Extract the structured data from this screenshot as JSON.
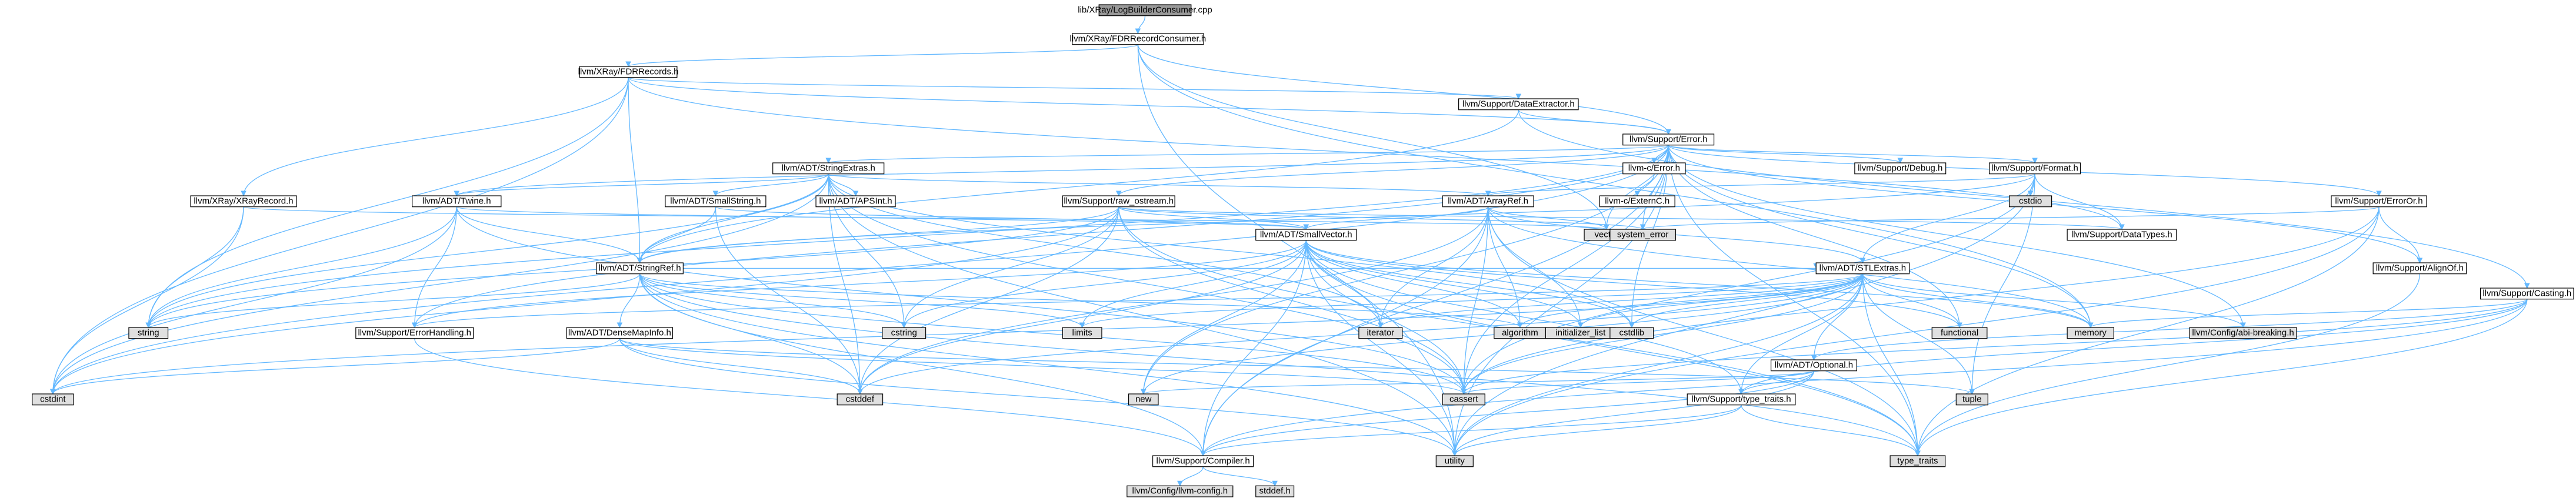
{
  "colors": {
    "edge": "#63b8ff",
    "node_fill": "#ffffff",
    "node_fill_focus": "#999999",
    "node_fill_system": "#e0e0e0",
    "node_stroke": "#000000",
    "node_stroke_missing": "#ff0000",
    "text": "#000000",
    "text_missing": "#ff0000"
  },
  "nodes": [
    {
      "id": "n_root",
      "label": "lib/XRay/LogBuilderConsumer.cpp",
      "kind": "focus"
    },
    {
      "id": "n_fdrrc",
      "label": "llvm/XRay/FDRRecordConsumer.h",
      "kind": "normal"
    },
    {
      "id": "n_fdrrecords",
      "label": "llvm/XRay/FDRRecords.h",
      "kind": "normal"
    },
    {
      "id": "n_dataext",
      "label": "llvm/Support/DataExtractor.h",
      "kind": "normal"
    },
    {
      "id": "n_error",
      "label": "llvm/Support/Error.h",
      "kind": "normal"
    },
    {
      "id": "n_strext",
      "label": "llvm/ADT/StringExtras.h",
      "kind": "normal"
    },
    {
      "id": "n_cerror",
      "label": "llvm-c/Error.h",
      "kind": "normal"
    },
    {
      "id": "n_debug",
      "label": "llvm/Support/Debug.h",
      "kind": "normal"
    },
    {
      "id": "n_format",
      "label": "llvm/Support/Format.h",
      "kind": "normal"
    },
    {
      "id": "n_xrayrec",
      "label": "llvm/XRay/XRayRecord.h",
      "kind": "normal"
    },
    {
      "id": "n_twine",
      "label": "llvm/ADT/Twine.h",
      "kind": "normal"
    },
    {
      "id": "n_smallstr",
      "label": "llvm/ADT/SmallString.h",
      "kind": "normal"
    },
    {
      "id": "n_apsint",
      "label": "llvm/ADT/APSInt.h",
      "kind": "missing"
    },
    {
      "id": "n_arrayref",
      "label": "llvm/ADT/ArrayRef.h",
      "kind": "missing"
    },
    {
      "id": "n_rawostream",
      "label": "llvm/Support/raw_ostream.h",
      "kind": "normal"
    },
    {
      "id": "n_externc",
      "label": "llvm-c/ExternC.h",
      "kind": "normal"
    },
    {
      "id": "n_cstdio",
      "label": "cstdio",
      "kind": "system"
    },
    {
      "id": "n_erroror",
      "label": "llvm/Support/ErrorOr.h",
      "kind": "normal"
    },
    {
      "id": "n_casting",
      "label": "llvm/Support/Casting.h",
      "kind": "normal"
    },
    {
      "id": "n_stringref",
      "label": "llvm/ADT/StringRef.h",
      "kind": "missing"
    },
    {
      "id": "n_smallvector",
      "label": "llvm/ADT/SmallVector.h",
      "kind": "normal"
    },
    {
      "id": "n_vector",
      "label": "vector",
      "kind": "system"
    },
    {
      "id": "n_syserror",
      "label": "system_error",
      "kind": "system"
    },
    {
      "id": "n_datatypes",
      "label": "llvm/Support/DataTypes.h",
      "kind": "missing"
    },
    {
      "id": "n_stlextras",
      "label": "llvm/ADT/STLExtras.h",
      "kind": "missing"
    },
    {
      "id": "n_alignof",
      "label": "llvm/Support/AlignOf.h",
      "kind": "normal"
    },
    {
      "id": "n_string",
      "label": "string",
      "kind": "system"
    },
    {
      "id": "n_errhandling",
      "label": "llvm/Support/ErrorHandling.h",
      "kind": "normal"
    },
    {
      "id": "n_densemapinfo",
      "label": "llvm/ADT/DenseMapInfo.h",
      "kind": "normal"
    },
    {
      "id": "n_cstring",
      "label": "cstring",
      "kind": "system"
    },
    {
      "id": "n_limits",
      "label": "limits",
      "kind": "system"
    },
    {
      "id": "n_iterator",
      "label": "iterator",
      "kind": "system"
    },
    {
      "id": "n_algorithm",
      "label": "algorithm",
      "kind": "system"
    },
    {
      "id": "n_initlist",
      "label": "initializer_list",
      "kind": "system"
    },
    {
      "id": "n_cstdlib",
      "label": "cstdlib",
      "kind": "system"
    },
    {
      "id": "n_functional",
      "label": "functional",
      "kind": "system"
    },
    {
      "id": "n_memory",
      "label": "memory",
      "kind": "system"
    },
    {
      "id": "n_abibreak",
      "label": "llvm/Config/abi-breaking.h",
      "kind": "system"
    },
    {
      "id": "n_optional",
      "label": "llvm/ADT/Optional.h",
      "kind": "missing"
    },
    {
      "id": "n_cstdint",
      "label": "cstdint",
      "kind": "system"
    },
    {
      "id": "n_cstddef",
      "label": "cstddef",
      "kind": "system"
    },
    {
      "id": "n_new",
      "label": "new",
      "kind": "system"
    },
    {
      "id": "n_cassert",
      "label": "cassert",
      "kind": "system"
    },
    {
      "id": "n_typetraits",
      "label": "llvm/Support/type_traits.h",
      "kind": "normal"
    },
    {
      "id": "n_tuple",
      "label": "tuple",
      "kind": "system"
    },
    {
      "id": "n_compiler",
      "label": "llvm/Support/Compiler.h",
      "kind": "normal"
    },
    {
      "id": "n_utility",
      "label": "utility",
      "kind": "system"
    },
    {
      "id": "n_typetraits_std",
      "label": "type_traits",
      "kind": "system"
    },
    {
      "id": "n_llvmconfig",
      "label": "llvm/Config/llvm-config.h",
      "kind": "system"
    },
    {
      "id": "n_stddef",
      "label": "stddef.h",
      "kind": "system"
    }
  ],
  "edges": [
    [
      "n_root",
      "n_fdrrc"
    ],
    [
      "n_fdrrc",
      "n_fdrrecords"
    ],
    [
      "n_fdrrc",
      "n_error"
    ],
    [
      "n_fdrrc",
      "n_memory"
    ],
    [
      "n_fdrrc",
      "n_utility"
    ],
    [
      "n_fdrrc",
      "n_vector"
    ],
    [
      "n_fdrrecords",
      "n_stringref"
    ],
    [
      "n_fdrrecords",
      "n_dataext"
    ],
    [
      "n_fdrrecords",
      "n_error"
    ],
    [
      "n_fdrrecords",
      "n_xrayrec"
    ],
    [
      "n_fdrrecords",
      "n_cstdint"
    ],
    [
      "n_fdrrecords",
      "n_string"
    ],
    [
      "n_fdrrecords",
      "n_datatypes"
    ],
    [
      "n_dataext",
      "n_stringref"
    ],
    [
      "n_dataext",
      "n_error"
    ],
    [
      "n_dataext",
      "n_casting"
    ],
    [
      "n_error",
      "n_strext"
    ],
    [
      "n_error",
      "n_cerror"
    ],
    [
      "n_error",
      "n_debug"
    ],
    [
      "n_error",
      "n_format"
    ],
    [
      "n_error",
      "n_rawostream"
    ],
    [
      "n_error",
      "n_erroror"
    ],
    [
      "n_error",
      "n_abibreak"
    ],
    [
      "n_error",
      "n_compiler"
    ],
    [
      "n_error",
      "n_twine"
    ],
    [
      "n_error",
      "n_errhandling"
    ],
    [
      "n_error",
      "n_alignof"
    ],
    [
      "n_error",
      "n_cassert"
    ],
    [
      "n_error",
      "n_cstdint"
    ],
    [
      "n_error",
      "n_cstdlib"
    ],
    [
      "n_error",
      "n_functional"
    ],
    [
      "n_error",
      "n_memory"
    ],
    [
      "n_error",
      "n_new"
    ],
    [
      "n_error",
      "n_string"
    ],
    [
      "n_error",
      "n_syserror"
    ],
    [
      "n_error",
      "n_typetraits_std"
    ],
    [
      "n_error",
      "n_utility"
    ],
    [
      "n_error",
      "n_vector"
    ],
    [
      "n_strext",
      "n_apsint"
    ],
    [
      "n_strext",
      "n_arrayref"
    ],
    [
      "n_strext",
      "n_smallstr"
    ],
    [
      "n_strext",
      "n_stringref"
    ],
    [
      "n_strext",
      "n_twine"
    ],
    [
      "n_strext",
      "n_cassert"
    ],
    [
      "n_strext",
      "n_cstddef"
    ],
    [
      "n_strext",
      "n_cstdint"
    ],
    [
      "n_strext",
      "n_cstdlib"
    ],
    [
      "n_strext",
      "n_cstring"
    ],
    [
      "n_strext",
      "n_iterator"
    ],
    [
      "n_strext",
      "n_string"
    ],
    [
      "n_strext",
      "n_utility"
    ],
    [
      "n_cerror",
      "n_externc"
    ],
    [
      "n_format",
      "n_arrayref"
    ],
    [
      "n_format",
      "n_stlextras"
    ],
    [
      "n_format",
      "n_stringref"
    ],
    [
      "n_format",
      "n_datatypes"
    ],
    [
      "n_format",
      "n_cassert"
    ],
    [
      "n_format",
      "n_cstdio"
    ],
    [
      "n_format",
      "n_tuple"
    ],
    [
      "n_format",
      "n_utility"
    ],
    [
      "n_xrayrec",
      "n_cstdint"
    ],
    [
      "n_xrayrec",
      "n_vector"
    ],
    [
      "n_xrayrec",
      "n_string"
    ],
    [
      "n_twine",
      "n_smallvector"
    ],
    [
      "n_twine",
      "n_stringref"
    ],
    [
      "n_twine",
      "n_errhandling"
    ],
    [
      "n_twine",
      "n_cassert"
    ],
    [
      "n_twine",
      "n_cstdint"
    ],
    [
      "n_twine",
      "n_string"
    ],
    [
      "n_smallstr",
      "n_smallvector"
    ],
    [
      "n_smallstr",
      "n_stringref"
    ],
    [
      "n_smallstr",
      "n_cstddef"
    ],
    [
      "n_arrayref",
      "n_smallvector"
    ],
    [
      "n_arrayref",
      "n_stlextras"
    ],
    [
      "n_arrayref",
      "n_compiler"
    ],
    [
      "n_arrayref",
      "n_algorithm"
    ],
    [
      "n_arrayref",
      "n_array"
    ],
    [
      "n_arrayref",
      "n_cassert"
    ],
    [
      "n_arrayref",
      "n_cstddef"
    ],
    [
      "n_arrayref",
      "n_initlist"
    ],
    [
      "n_arrayref",
      "n_iterator"
    ],
    [
      "n_arrayref",
      "n_memory"
    ],
    [
      "n_arrayref",
      "n_typetraits_std"
    ],
    [
      "n_arrayref",
      "n_vector"
    ],
    [
      "n_rawostream",
      "n_stringref"
    ],
    [
      "n_rawostream",
      "n_smallvector"
    ],
    [
      "n_rawostream",
      "n_datatypes"
    ],
    [
      "n_rawostream",
      "n_cassert"
    ],
    [
      "n_rawostream",
      "n_cstddef"
    ],
    [
      "n_rawostream",
      "n_cstdint"
    ],
    [
      "n_rawostream",
      "n_cstring"
    ],
    [
      "n_rawostream",
      "n_string"
    ],
    [
      "n_rawostream",
      "n_syserror"
    ],
    [
      "n_rawostream",
      "n_typetraits_std"
    ],
    [
      "n_erroror",
      "n_alignof"
    ],
    [
      "n_erroror",
      "n_cassert"
    ],
    [
      "n_erroror",
      "n_syserror"
    ],
    [
      "n_erroror",
      "n_typetraits_std"
    ],
    [
      "n_erroror",
      "n_utility"
    ],
    [
      "n_casting",
      "n_compiler"
    ],
    [
      "n_casting",
      "n_typetraits"
    ],
    [
      "n_casting",
      "n_cassert"
    ],
    [
      "n_casting",
      "n_memory"
    ],
    [
      "n_casting",
      "n_typetraits_std"
    ],
    [
      "n_casting",
      "n_optional"
    ],
    [
      "n_stringref",
      "n_densemapinfo"
    ],
    [
      "n_stringref",
      "n_stlextras"
    ],
    [
      "n_stringref",
      "n_compiler"
    ],
    [
      "n_stringref",
      "n_algorithm"
    ],
    [
      "n_stringref",
      "n_cassert"
    ],
    [
      "n_stringref",
      "n_cstddef"
    ],
    [
      "n_stringref",
      "n_cstring"
    ],
    [
      "n_stringref",
      "n_limits"
    ],
    [
      "n_stringref",
      "n_string"
    ],
    [
      "n_stringref",
      "n_typetraits_std"
    ],
    [
      "n_stringref",
      "n_utility"
    ],
    [
      "n_smallvector",
      "n_compiler"
    ],
    [
      "n_smallvector",
      "n_typetraits"
    ],
    [
      "n_smallvector",
      "n_algorithm"
    ],
    [
      "n_smallvector",
      "n_cassert"
    ],
    [
      "n_smallvector",
      "n_cstddef"
    ],
    [
      "n_smallvector",
      "n_cstdlib"
    ],
    [
      "n_smallvector",
      "n_cstring"
    ],
    [
      "n_smallvector",
      "n_functional"
    ],
    [
      "n_smallvector",
      "n_initlist"
    ],
    [
      "n_smallvector",
      "n_iterator"
    ],
    [
      "n_smallvector",
      "n_limits"
    ],
    [
      "n_smallvector",
      "n_memory"
    ],
    [
      "n_smallvector",
      "n_new"
    ],
    [
      "n_smallvector",
      "n_typetraits_std"
    ],
    [
      "n_smallvector",
      "n_utility"
    ],
    [
      "n_smallvector",
      "n_errhandling"
    ],
    [
      "n_stlextras",
      "n_optional"
    ],
    [
      "n_stlextras",
      "n_abibreak"
    ],
    [
      "n_stlextras",
      "n_errhandling"
    ],
    [
      "n_stlextras",
      "n_algorithm"
    ],
    [
      "n_stlextras",
      "n_cassert"
    ],
    [
      "n_stlextras",
      "n_cstddef"
    ],
    [
      "n_stlextras",
      "n_cstdint"
    ],
    [
      "n_stlextras",
      "n_cstdlib"
    ],
    [
      "n_stlextras",
      "n_functional"
    ],
    [
      "n_stlextras",
      "n_initlist"
    ],
    [
      "n_stlextras",
      "n_iterator"
    ],
    [
      "n_stlextras",
      "n_limits"
    ],
    [
      "n_stlextras",
      "n_memory"
    ],
    [
      "n_stlextras",
      "n_tuple"
    ],
    [
      "n_stlextras",
      "n_typetraits_std"
    ],
    [
      "n_stlextras",
      "n_utility"
    ],
    [
      "n_stlextras",
      "n_new"
    ],
    [
      "n_stlextras",
      "n_typetraits"
    ],
    [
      "n_alignof",
      "n_typetraits_std"
    ],
    [
      "n_errhandling",
      "n_compiler"
    ],
    [
      "n_densemapinfo",
      "n_cassert"
    ],
    [
      "n_densemapinfo",
      "n_cstddef"
    ],
    [
      "n_densemapinfo",
      "n_cstdint"
    ],
    [
      "n_densemapinfo",
      "n_tuple"
    ],
    [
      "n_densemapinfo",
      "n_utility"
    ],
    [
      "n_optional",
      "n_compiler"
    ],
    [
      "n_optional",
      "n_typetraits"
    ],
    [
      "n_optional",
      "n_cassert"
    ],
    [
      "n_optional",
      "n_new"
    ],
    [
      "n_optional",
      "n_utility"
    ],
    [
      "n_typetraits",
      "n_compiler"
    ],
    [
      "n_typetraits",
      "n_typetraits_std"
    ],
    [
      "n_typetraits",
      "n_utility"
    ],
    [
      "n_compiler",
      "n_llvmconfig"
    ],
    [
      "n_compiler",
      "n_stddef"
    ]
  ]
}
